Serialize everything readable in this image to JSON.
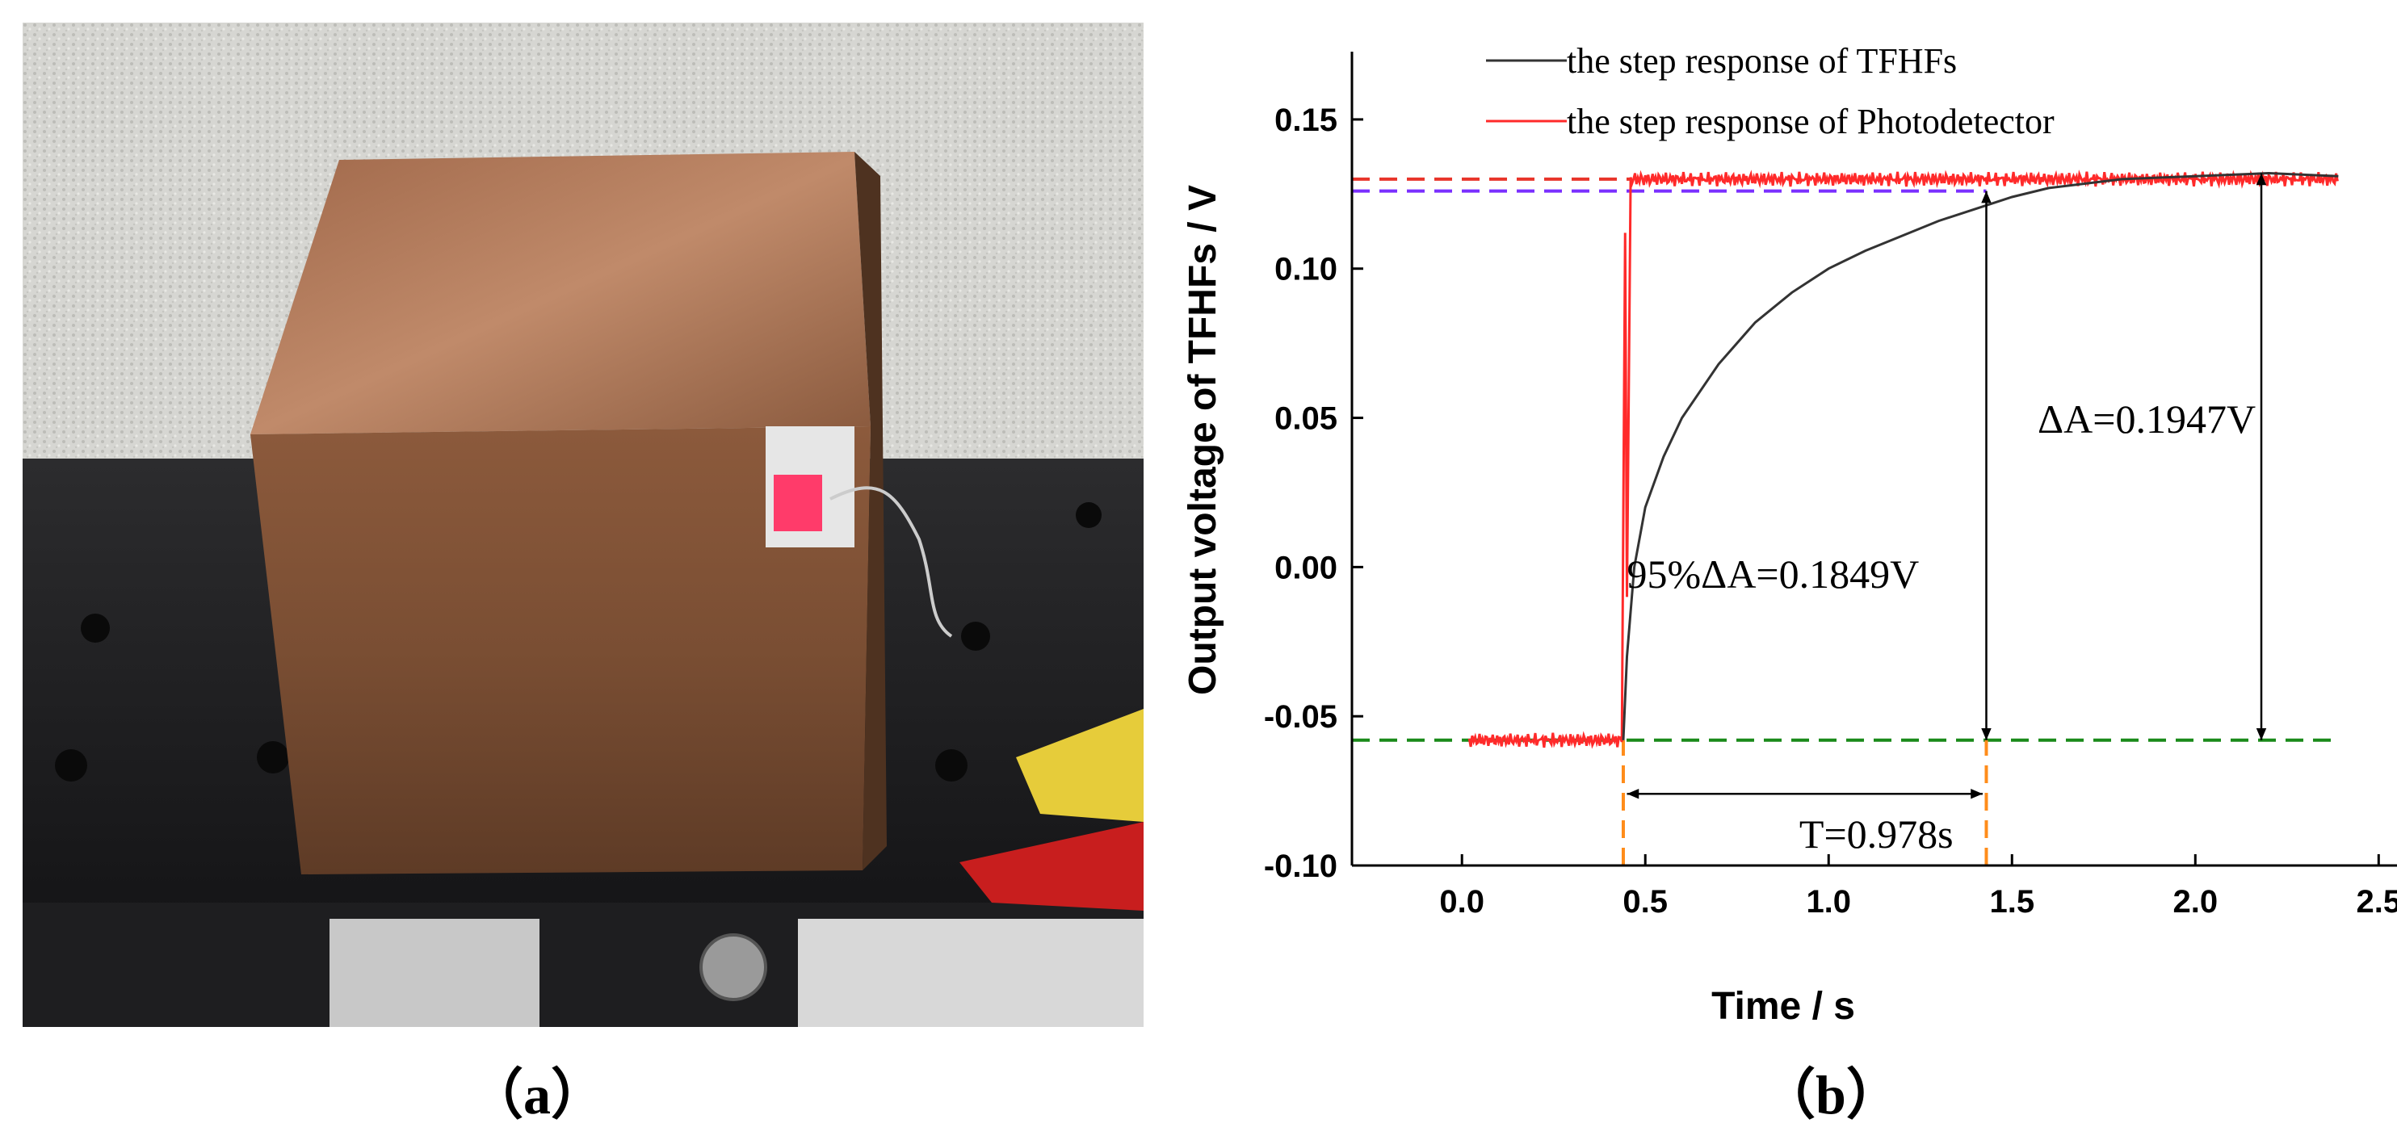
{
  "panels": {
    "a_label": "（a）",
    "b_label": "（b）"
  },
  "colors": {
    "tfhf": "#333333",
    "photodetector": "#ff2a2a",
    "ref_top": "#e8342a",
    "ref_95": "#7a2fff",
    "baseline": "#1a8a1a",
    "time_marker": "#ff8c1a"
  },
  "chart_data": {
    "type": "line",
    "title": "",
    "xlabel": "Time / s",
    "ylabel": "Output  voltage  of  TFHFs / V",
    "xlim": [
      -0.3,
      2.55
    ],
    "ylim": [
      -0.1,
      0.17
    ],
    "xticks": [
      "0.0",
      "0.5",
      "1.0",
      "1.5",
      "2.0",
      "2.5"
    ],
    "xtick_values": [
      0.0,
      0.5,
      1.0,
      1.5,
      2.0,
      2.5
    ],
    "yticks": [
      "-0.10",
      "-0.05",
      "0.00",
      "0.05",
      "0.10",
      "0.15"
    ],
    "ytick_values": [
      -0.1,
      -0.05,
      0.0,
      0.05,
      0.1,
      0.15
    ],
    "grid": false,
    "legend_position": "top-left",
    "series": [
      {
        "name": "the step response of TFHFs",
        "x": [
          0.44,
          0.45,
          0.47,
          0.5,
          0.55,
          0.6,
          0.7,
          0.8,
          0.9,
          1.0,
          1.1,
          1.2,
          1.3,
          1.4,
          1.5,
          1.6,
          1.8,
          2.0,
          2.2,
          2.39
        ],
        "y": [
          -0.058,
          -0.03,
          0.0,
          0.02,
          0.037,
          0.05,
          0.068,
          0.082,
          0.092,
          0.1,
          0.106,
          0.111,
          0.116,
          0.12,
          0.124,
          0.127,
          0.13,
          0.131,
          0.132,
          0.131
        ]
      },
      {
        "name": "the step response of Photodetector",
        "x": [
          0.02,
          0.44,
          0.445,
          0.45,
          0.46,
          2.39
        ],
        "y": [
          -0.058,
          -0.058,
          0.112,
          -0.01,
          0.13,
          0.13
        ]
      }
    ],
    "reference_lines": [
      {
        "type": "hline",
        "y": 0.13,
        "x_range": [
          -0.3,
          0.46
        ]
      },
      {
        "type": "hline",
        "y": 0.126,
        "x_range": [
          -0.3,
          1.43
        ]
      },
      {
        "type": "hline",
        "y": -0.058,
        "x_range": [
          -0.3,
          2.39
        ]
      },
      {
        "type": "vline",
        "x": 0.44,
        "y_range": [
          -0.1,
          -0.058
        ]
      },
      {
        "type": "vline",
        "x": 1.43,
        "y_range": [
          -0.1,
          -0.058
        ]
      }
    ],
    "annotations": [
      {
        "text": "ΔA=0.1947V",
        "x": 1.57,
        "y": 0.045
      },
      {
        "text": "95%ΔA=0.1849V",
        "x": 0.45,
        "y": -0.007
      },
      {
        "text": "T=0.978s",
        "x": 0.92,
        "y": -0.094
      }
    ],
    "arrows": [
      {
        "from": [
          2.18,
          -0.058
        ],
        "to": [
          2.18,
          0.132
        ]
      },
      {
        "from": [
          1.43,
          -0.058
        ],
        "to": [
          1.43,
          0.126
        ]
      },
      {
        "from": [
          0.45,
          -0.076
        ],
        "to": [
          1.42,
          -0.076
        ]
      }
    ]
  }
}
